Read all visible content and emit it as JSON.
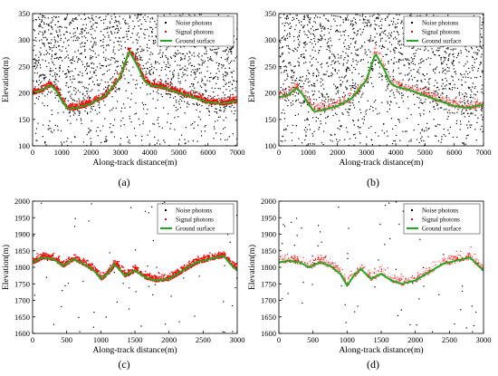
{
  "figure": {
    "panel_labels": [
      "(a)",
      "(b)",
      "(c)",
      "(d)"
    ]
  },
  "colors": {
    "noise": "#000000",
    "signal": "#ff0000",
    "signal_light": "#ff9a9a",
    "ground": "#22aa22",
    "axis": "#000000"
  },
  "chart_data": [
    {
      "type": "scatter",
      "panel": "(a)",
      "xlabel": "Along-track distance(m)",
      "ylabel": "Elevation(m)",
      "xlim": [
        0,
        7000
      ],
      "ylim": [
        100,
        350
      ],
      "xticks": [
        0,
        1000,
        2000,
        3000,
        4000,
        5000,
        6000,
        7000
      ],
      "yticks": [
        100,
        150,
        200,
        250,
        300,
        350
      ],
      "legend": {
        "placement": "top-right",
        "entries": [
          "Noise photons",
          "Signal photons",
          "Ground surface"
        ]
      },
      "noise_density": "high",
      "signal_style": "dense",
      "ground_surface": {
        "x": [
          0,
          300,
          600,
          800,
          1000,
          1200,
          1500,
          2000,
          2500,
          3000,
          3300,
          3600,
          3800,
          4000,
          4500,
          5000,
          5500,
          6000,
          6500,
          7000
        ],
        "y": [
          200,
          205,
          215,
          205,
          185,
          170,
          172,
          180,
          195,
          230,
          280,
          250,
          225,
          215,
          210,
          200,
          192,
          182,
          180,
          185
        ]
      }
    },
    {
      "type": "scatter",
      "panel": "(b)",
      "xlabel": "Along-track distance(m)",
      "ylabel": "Elevation(m)",
      "xlim": [
        0,
        7000
      ],
      "ylim": [
        100,
        350
      ],
      "xticks": [
        0,
        1000,
        2000,
        3000,
        4000,
        5000,
        6000,
        7000
      ],
      "yticks": [
        100,
        150,
        200,
        250,
        300,
        350
      ],
      "legend": {
        "placement": "top-right",
        "entries": [
          "Noise photons",
          "Signal photons",
          "Ground surface"
        ]
      },
      "noise_density": "high",
      "signal_style": "sparse",
      "ground_surface": {
        "x": [
          0,
          300,
          600,
          800,
          1000,
          1200,
          1500,
          2000,
          2500,
          3000,
          3300,
          3600,
          3800,
          4000,
          4500,
          5000,
          5500,
          6000,
          6500,
          7000
        ],
        "y": [
          192,
          195,
          210,
          198,
          180,
          165,
          168,
          175,
          190,
          225,
          275,
          245,
          220,
          212,
          205,
          195,
          185,
          175,
          172,
          178
        ]
      }
    },
    {
      "type": "scatter",
      "panel": "(c)",
      "xlabel": "Along-track distance(m)",
      "ylabel": "Elevation(m)",
      "xlim": [
        0,
        3000
      ],
      "ylim": [
        1600,
        2000
      ],
      "xticks": [
        0,
        500,
        1000,
        1500,
        2000,
        2500,
        3000
      ],
      "yticks": [
        1600,
        1650,
        1700,
        1750,
        1800,
        1850,
        1900,
        1950,
        2000
      ],
      "legend": {
        "placement": "top-right",
        "entries": [
          "Noise photons",
          "Signal photons",
          "Ground surface"
        ]
      },
      "noise_density": "low",
      "signal_style": "dense",
      "ground_surface": {
        "x": [
          0,
          150,
          300,
          450,
          600,
          750,
          900,
          1000,
          1100,
          1200,
          1350,
          1500,
          1650,
          1800,
          2000,
          2200,
          2400,
          2600,
          2800,
          2900,
          3000
        ],
        "y": [
          1815,
          1830,
          1825,
          1805,
          1825,
          1810,
          1790,
          1765,
          1780,
          1810,
          1775,
          1790,
          1770,
          1760,
          1765,
          1790,
          1815,
          1825,
          1835,
          1810,
          1790
        ]
      }
    },
    {
      "type": "scatter",
      "panel": "(d)",
      "xlabel": "Along-track distance(m)",
      "ylabel": "Elevation(m)",
      "xlim": [
        0,
        3000
      ],
      "ylim": [
        1600,
        2000
      ],
      "xticks": [
        0,
        500,
        1000,
        1500,
        2000,
        2500,
        3000
      ],
      "yticks": [
        1600,
        1650,
        1700,
        1750,
        1800,
        1850,
        1900,
        1950,
        2000
      ],
      "legend": {
        "placement": "top-right",
        "entries": [
          "Noise photons",
          "Signal photons",
          "Ground surface"
        ]
      },
      "noise_density": "low",
      "signal_style": "sparse",
      "ground_surface": {
        "x": [
          0,
          150,
          300,
          450,
          600,
          750,
          900,
          1000,
          1100,
          1200,
          1350,
          1500,
          1650,
          1800,
          2000,
          2200,
          2400,
          2600,
          2800,
          2900,
          3000
        ],
        "y": [
          1815,
          1820,
          1815,
          1800,
          1815,
          1805,
          1780,
          1745,
          1775,
          1795,
          1765,
          1780,
          1760,
          1750,
          1760,
          1785,
          1810,
          1820,
          1830,
          1810,
          1790
        ]
      }
    }
  ]
}
